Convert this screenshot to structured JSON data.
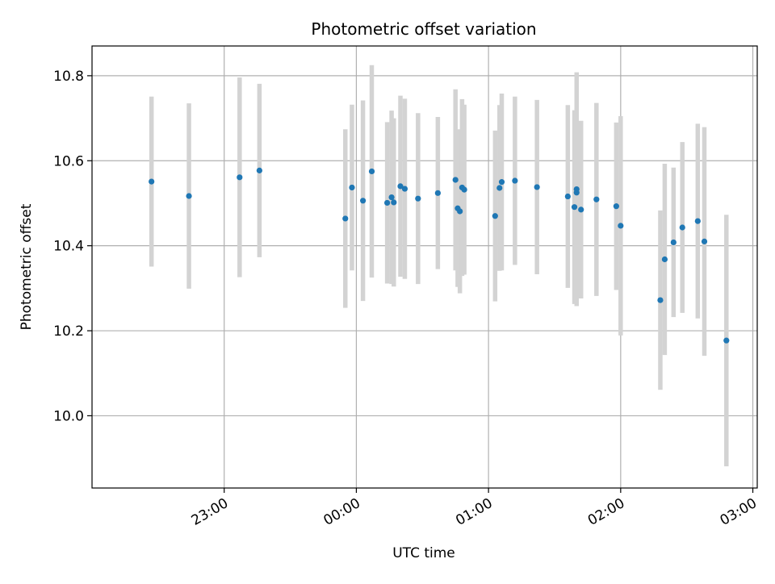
{
  "chart_data": {
    "type": "scatter",
    "title": "Photometric offset variation",
    "xlabel": "UTC time",
    "ylabel": "Photometric offset",
    "x_axis": "time",
    "x_tick_labels": [
      "23:00",
      "00:00",
      "01:00",
      "02:00",
      "03:00"
    ],
    "y_tick_values": [
      10.0,
      10.2,
      10.4,
      10.6,
      10.8
    ],
    "y_tick_labels": [
      "10.0",
      "10.2",
      "10.4",
      "10.6",
      "10.8"
    ],
    "xlim": [
      "22:00",
      "03:02"
    ],
    "ylim": [
      9.83,
      10.87
    ],
    "grid": true,
    "marker_color": "#1f77b4",
    "errorbar_color": "#d3d3d3",
    "points": [
      {
        "x": "22:27",
        "y": 10.551,
        "err": 0.2
      },
      {
        "x": "22:44",
        "y": 10.517,
        "err": 0.218
      },
      {
        "x": "23:07",
        "y": 10.561,
        "err": 0.235
      },
      {
        "x": "23:16",
        "y": 10.577,
        "err": 0.204
      },
      {
        "x": "23:55",
        "y": 10.464,
        "err": 0.21
      },
      {
        "x": "23:58",
        "y": 10.537,
        "err": 0.195
      },
      {
        "x": "00:03",
        "y": 10.506,
        "err": 0.236
      },
      {
        "x": "00:07",
        "y": 10.575,
        "err": 0.25
      },
      {
        "x": "00:14",
        "y": 10.501,
        "err": 0.19
      },
      {
        "x": "00:16",
        "y": 10.514,
        "err": 0.204
      },
      {
        "x": "00:17",
        "y": 10.502,
        "err": 0.198
      },
      {
        "x": "00:20",
        "y": 10.54,
        "err": 0.213
      },
      {
        "x": "00:22",
        "y": 10.534,
        "err": 0.212
      },
      {
        "x": "00:28",
        "y": 10.511,
        "err": 0.201
      },
      {
        "x": "00:37",
        "y": 10.524,
        "err": 0.179
      },
      {
        "x": "00:45",
        "y": 10.555,
        "err": 0.213
      },
      {
        "x": "00:46",
        "y": 10.488,
        "err": 0.185
      },
      {
        "x": "00:47",
        "y": 10.481,
        "err": 0.193
      },
      {
        "x": "00:48",
        "y": 10.537,
        "err": 0.208
      },
      {
        "x": "00:49",
        "y": 10.532,
        "err": 0.2
      },
      {
        "x": "01:03",
        "y": 10.47,
        "err": 0.201
      },
      {
        "x": "01:05",
        "y": 10.536,
        "err": 0.195
      },
      {
        "x": "01:06",
        "y": 10.55,
        "err": 0.208
      },
      {
        "x": "01:12",
        "y": 10.553,
        "err": 0.198
      },
      {
        "x": "01:22",
        "y": 10.538,
        "err": 0.205
      },
      {
        "x": "01:36",
        "y": 10.516,
        "err": 0.215
      },
      {
        "x": "01:39",
        "y": 10.491,
        "err": 0.228
      },
      {
        "x": "01:40",
        "y": 10.525,
        "err": 0.198
      },
      {
        "x": "01:40",
        "y": 10.533,
        "err": 0.275
      },
      {
        "x": "01:42",
        "y": 10.485,
        "err": 0.209
      },
      {
        "x": "01:49",
        "y": 10.509,
        "err": 0.227
      },
      {
        "x": "01:58",
        "y": 10.493,
        "err": 0.197
      },
      {
        "x": "02:00",
        "y": 10.447,
        "err": 0.258
      },
      {
        "x": "02:18",
        "y": 10.272,
        "err": 0.211
      },
      {
        "x": "02:20",
        "y": 10.368,
        "err": 0.225
      },
      {
        "x": "02:24",
        "y": 10.408,
        "err": 0.176
      },
      {
        "x": "02:28",
        "y": 10.443,
        "err": 0.201
      },
      {
        "x": "02:35",
        "y": 10.458,
        "err": 0.229
      },
      {
        "x": "02:38",
        "y": 10.41,
        "err": 0.269
      },
      {
        "x": "02:48",
        "y": 10.177,
        "err": 0.296
      }
    ]
  }
}
